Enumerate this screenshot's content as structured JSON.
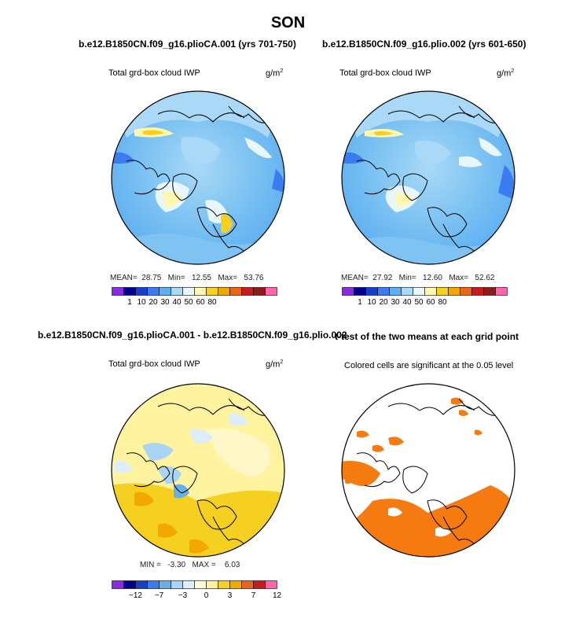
{
  "figure": {
    "title": "SON"
  },
  "panels": [
    {
      "id": "tl",
      "title": "b.e12.B1850CN.f09_g16.plioCA.001 (yrs 701-750)",
      "left_label": "Total grd-box cloud IWP",
      "units_base": "g/m",
      "units_exp": "2",
      "stats": {
        "mean_label": "MEAN=",
        "mean": "28.75",
        "min_label": "Min=",
        "min": "12.55",
        "max_label": "Max=",
        "max": "53.76"
      }
    },
    {
      "id": "tr",
      "title": "b.e12.B1850CN.f09_g16.plio.002 (yrs 601-650)",
      "left_label": "Total grd-box cloud IWP",
      "units_base": "g/m",
      "units_exp": "2",
      "stats": {
        "mean_label": "MEAN=",
        "mean": "27.92",
        "min_label": "Min=",
        "min": "12.60",
        "max_label": "Max=",
        "max": "52.62"
      }
    },
    {
      "id": "bl",
      "title": "b.e12.B1850CN.f09_g16.plioCA.001 - b.e12.B1850CN.f09_g16.plio.002",
      "left_label": "Total grd-box cloud IWP",
      "units_base": "g/m",
      "units_exp": "2",
      "stats": {
        "min_label": "MIN =",
        "min": "-3.30",
        "max_label": "MAX =",
        "max": "6.03"
      }
    },
    {
      "id": "br",
      "title": "t-test of the two means at each grid point",
      "left_label": "Colored cells are significant at the 0.05 level"
    }
  ],
  "chart_data": [
    {
      "type": "contour-map",
      "title": "b.e12.B1850CN.f09_g16.plioCA.001 (yrs 701-750)",
      "variable": "Total grd-box cloud IWP",
      "units": "g/m2",
      "projection": "north-polar-stereographic",
      "mean": 28.75,
      "min": 12.55,
      "max": 53.76,
      "colorbar": {
        "levels": [
          1,
          10,
          20,
          30,
          40,
          50,
          60,
          80
        ],
        "labels": [
          "1",
          "10",
          "20",
          "30",
          "40",
          "50",
          "60",
          "80"
        ],
        "colors": [
          "#8a2be2",
          "#00008b",
          "#1a3fc7",
          "#3a7bf0",
          "#5fb0f2",
          "#a9d9f7",
          "#e8f7fc",
          "#fff7b0",
          "#f5d020",
          "#f3a800",
          "#e8661a",
          "#c81c1c",
          "#8b1a1a",
          "#ff66aa"
        ]
      }
    },
    {
      "type": "contour-map",
      "title": "b.e12.B1850CN.f09_g16.plio.002 (yrs 601-650)",
      "variable": "Total grd-box cloud IWP",
      "units": "g/m2",
      "projection": "north-polar-stereographic",
      "mean": 27.92,
      "min": 12.6,
      "max": 52.62,
      "colorbar": {
        "levels": [
          1,
          10,
          20,
          30,
          40,
          50,
          60,
          80
        ],
        "labels": [
          "1",
          "10",
          "20",
          "30",
          "40",
          "50",
          "60",
          "80"
        ],
        "colors": [
          "#8a2be2",
          "#00008b",
          "#1a3fc7",
          "#3a7bf0",
          "#5fb0f2",
          "#a9d9f7",
          "#e8f7fc",
          "#fff7b0",
          "#f5d020",
          "#f3a800",
          "#e8661a",
          "#c81c1c",
          "#8b1a1a",
          "#ff66aa"
        ]
      }
    },
    {
      "type": "contour-map",
      "title": "b.e12.B1850CN.f09_g16.plioCA.001 - b.e12.B1850CN.f09_g16.plio.002",
      "variable": "Total grd-box cloud IWP",
      "units": "g/m2",
      "projection": "north-polar-stereographic",
      "min": -3.3,
      "max": 6.03,
      "colorbar": {
        "levels": [
          -12,
          -7,
          -3,
          0,
          3,
          7,
          12
        ],
        "labels": [
          "-12",
          "-7",
          "-3",
          "0",
          "3",
          "7",
          "12"
        ],
        "colors": [
          "#8a2be2",
          "#00008b",
          "#1a3fc7",
          "#3a7bf0",
          "#6aaee8",
          "#a9d4f5",
          "#ddeefa",
          "#fffbd8",
          "#fff3a0",
          "#f5d020",
          "#f3a800",
          "#e8661a",
          "#c81c1c",
          "#ff66aa"
        ]
      }
    },
    {
      "type": "significance-map",
      "title": "t-test of the two means at each grid point",
      "note": "Colored cells are significant at the 0.05 level",
      "significance_level": 0.05,
      "color": "#f57a10"
    }
  ]
}
